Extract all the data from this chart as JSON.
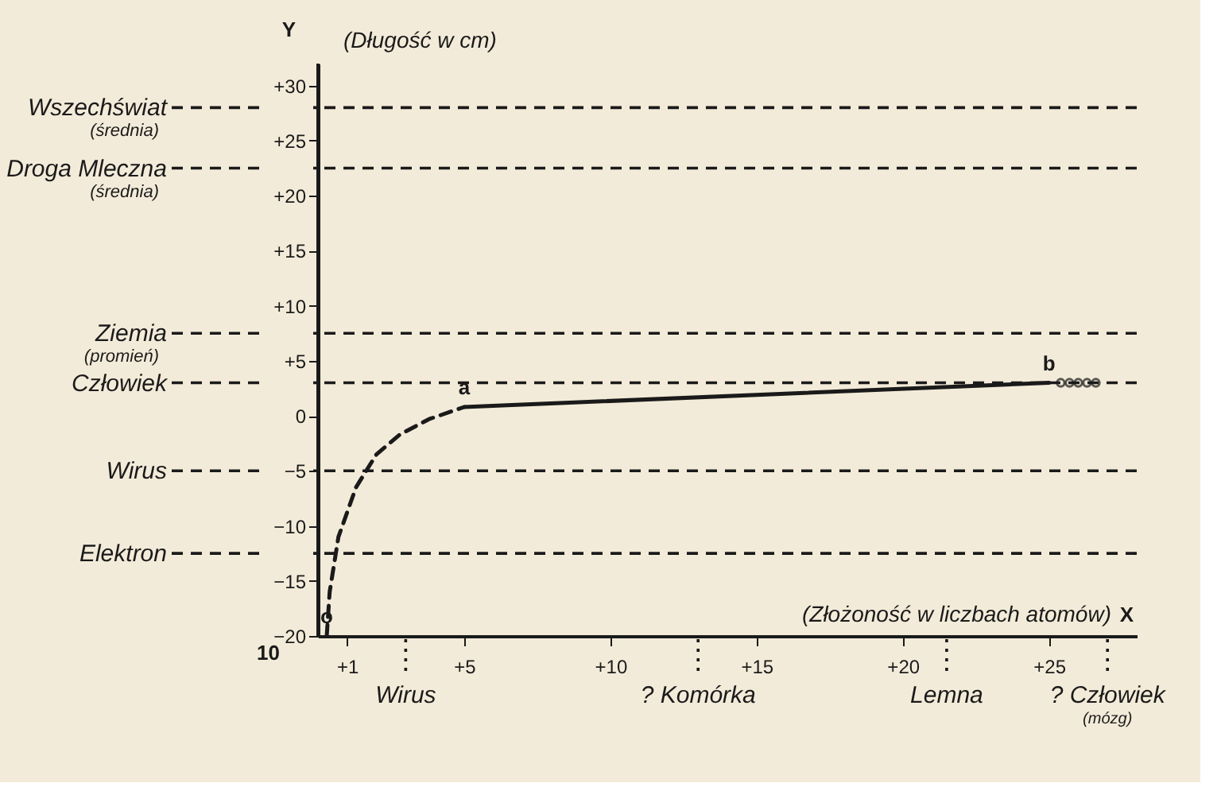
{
  "chart_data": {
    "type": "line",
    "xlabel": "(Złożoność w liczbach atomów)",
    "ylabel": "(Długość w cm)",
    "series": [
      {
        "color": "#1a1a1a",
        "line_style": "dashed",
        "x": [
          0.3,
          0.4,
          0.7,
          1.3,
          2,
          2.8,
          3.8,
          5
        ],
        "values": [
          -20,
          -16,
          -11,
          -6.5,
          -3.5,
          -1.7,
          -0.3,
          0.8
        ]
      },
      {
        "color": "#1a1a1a",
        "line_style": "solid",
        "x": [
          5,
          25
        ],
        "values": [
          0.8,
          3
        ]
      },
      {
        "type": "scatter",
        "color": "#1a1a1a",
        "marker": "circle",
        "x": [
          25.4,
          25.7,
          26.0,
          26.3,
          26.6
        ],
        "values": [
          3,
          3,
          3,
          3,
          3
        ]
      }
    ],
    "xlim": [
      0,
      28
    ],
    "xticks": [
      {
        "value": 1,
        "label": "+1"
      },
      {
        "value": 5,
        "label": "+5"
      },
      {
        "value": 10,
        "label": "+10"
      },
      {
        "value": 15,
        "label": "+15"
      },
      {
        "value": 20,
        "label": "+20"
      },
      {
        "value": 25,
        "label": "+25"
      }
    ],
    "ylim": [
      -20,
      32
    ],
    "yticks": [
      -20,
      -15,
      -10,
      -5,
      0,
      {
        "value": 5,
        "label": "+5"
      },
      {
        "value": 10,
        "label": "+10"
      },
      {
        "value": 15,
        "label": "+15"
      },
      {
        "value": 20,
        "label": "+20"
      },
      {
        "value": 25,
        "label": "+25"
      },
      {
        "value": 30,
        "label": "+30"
      }
    ],
    "ref_lines": [
      {
        "axis": "y",
        "value": 28,
        "label": "Wszechświat\n(średnia)",
        "line_style": "dashed"
      },
      {
        "axis": "y",
        "value": 22.5,
        "label": "Droga Mleczna\n(średnia)",
        "line_style": "dashed"
      },
      {
        "axis": "y",
        "value": 7.5,
        "label": "Ziemia\n(promień)",
        "line_style": "dashed"
      },
      {
        "axis": "y",
        "value": 3,
        "label": "Człowiek",
        "line_style": "dashed"
      },
      {
        "axis": "y",
        "value": -5,
        "label": "Wirus",
        "line_style": "dashed"
      },
      {
        "axis": "y",
        "value": -12.5,
        "label": "Elektron",
        "line_style": "dashed"
      },
      {
        "axis": "x",
        "value": 3,
        "label": "Wirus",
        "line_style": "dotted"
      },
      {
        "axis": "x",
        "value": 13,
        "label": "? Komórka",
        "line_style": "dotted"
      },
      {
        "axis": "x",
        "value": 21.5,
        "label": "Lemna",
        "line_style": "dotted"
      },
      {
        "axis": "x",
        "value": 27,
        "label": "? Człowiek\n(mózg)",
        "line_style": "dotted"
      }
    ],
    "annotations": [
      {
        "text": "a",
        "x": 5,
        "y": 0.8
      },
      {
        "text": "b",
        "x": 25,
        "y": 3
      },
      {
        "text": "o",
        "x": 0.3,
        "y": -20
      },
      "Y",
      "X",
      "10"
    ],
    "grid": false
  }
}
